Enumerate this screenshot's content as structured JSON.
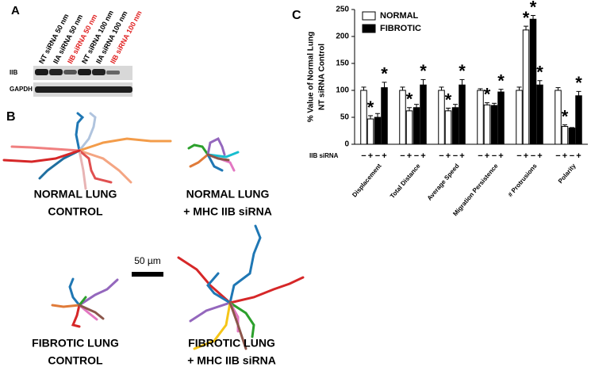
{
  "panel_a": {
    "label": "A",
    "lanes": [
      {
        "text": "NT siRNA 50 nm",
        "color": "#000000"
      },
      {
        "text": "IIA siRNA 50 nm",
        "color": "#000000"
      },
      {
        "text": "IIB siRNA 50 nm",
        "color": "#e02020"
      },
      {
        "text": "NT siRNA 100 nm",
        "color": "#000000"
      },
      {
        "text": "IIA siRNA 100 nm",
        "color": "#000000"
      },
      {
        "text": "IIB siRNA 100 nm",
        "color": "#e02020"
      }
    ],
    "rows": [
      "IIB",
      "GAPDH"
    ]
  },
  "panel_b": {
    "label": "B",
    "conditions": [
      [
        "NORMAL LUNG",
        "CONTROL"
      ],
      [
        "NORMAL LUNG",
        "+ MHC IIB siRNA"
      ],
      [
        "FIBROTIC LUNG",
        "CONTROL"
      ],
      [
        "FIBROTIC LUNG",
        "+ MHC IIB siRNA"
      ]
    ],
    "scale_bar": "50 µm"
  },
  "chart_data": {
    "type": "bar",
    "panel_label": "C",
    "ylabel": [
      "% Value of Normal Lung",
      "NT siRNA Control"
    ],
    "categories": [
      "Displacement",
      "Total Distance",
      "Average Speed",
      "Migration Persistence",
      "# Protrusions",
      "Polarity"
    ],
    "xlabel": "IIB siRNA",
    "sirna_labels": [
      "−",
      "+"
    ],
    "series": [
      {
        "name": "NORMAL",
        "color": "#ffffff",
        "values": [
          [
            100,
            47
          ],
          [
            100,
            62
          ],
          [
            100,
            62
          ],
          [
            100,
            73
          ],
          [
            100,
            212
          ],
          [
            100,
            33
          ]
        ],
        "errors": [
          [
            6,
            6
          ],
          [
            6,
            6
          ],
          [
            6,
            5
          ],
          [
            3,
            4
          ],
          [
            6,
            7
          ],
          [
            5,
            3
          ]
        ],
        "significant": [
          [
            false,
            true
          ],
          [
            false,
            true
          ],
          [
            false,
            true
          ],
          [
            false,
            true
          ],
          [
            false,
            true
          ],
          [
            false,
            true
          ]
        ]
      },
      {
        "name": "FIBROTIC",
        "color": "#000000",
        "values": [
          [
            50,
            105
          ],
          [
            68,
            110
          ],
          [
            68,
            110
          ],
          [
            72,
            97
          ],
          [
            232,
            110
          ],
          [
            30,
            90
          ]
        ],
        "errors": [
          [
            7,
            10
          ],
          [
            6,
            10
          ],
          [
            6,
            10
          ],
          [
            4,
            5
          ],
          [
            7,
            8
          ],
          [
            1,
            8
          ]
        ],
        "significant": [
          [
            false,
            true
          ],
          [
            false,
            true
          ],
          [
            false,
            true
          ],
          [
            false,
            true
          ],
          [
            true,
            true
          ],
          [
            false,
            true
          ]
        ]
      }
    ],
    "significance_label": "*",
    "ylim": [
      0,
      250
    ],
    "yticks": [
      0,
      50,
      100,
      150,
      200,
      250
    ],
    "legend": "upper left"
  }
}
